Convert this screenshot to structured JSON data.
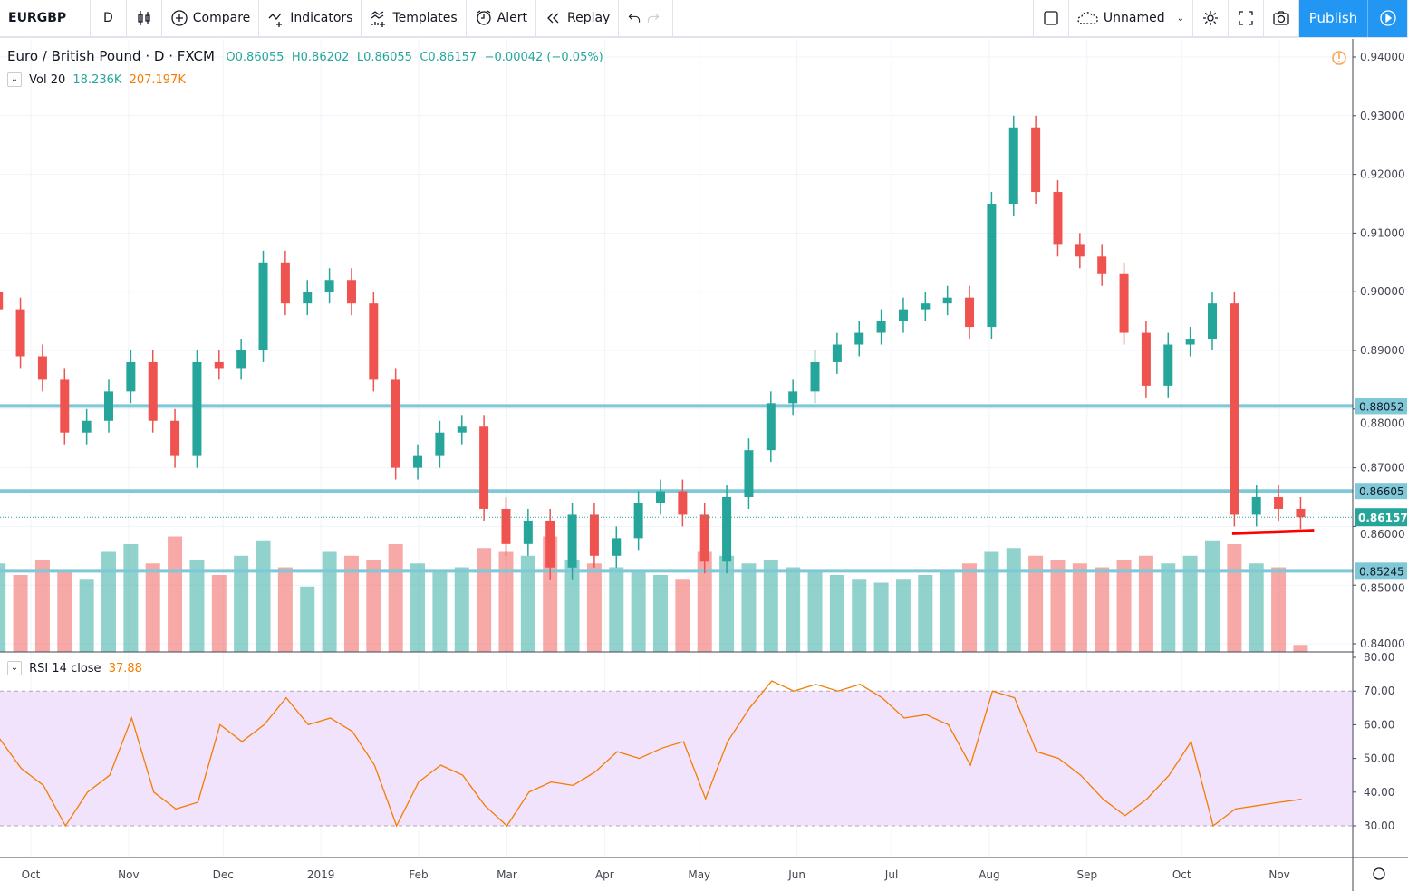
{
  "toolbar": {
    "symbol": "EURGBP",
    "interval": "D",
    "compare": "Compare",
    "indicators": "Indicators",
    "templates": "Templates",
    "alert": "Alert",
    "replay": "Replay",
    "layout_name": "Unnamed",
    "publish": "Publish"
  },
  "legend": {
    "title": "Euro / British Pound · D · FXCM",
    "open": "O0.86055",
    "high": "H0.86202",
    "low": "L0.86055",
    "close": "C0.86157",
    "change": "−0.00042 (−0.05%)",
    "vol_label": "Vol 20",
    "vol_value": "18.236K",
    "vol_ma": "207.197K",
    "rsi_label": "RSI 14 close",
    "rsi_value": "37.88"
  },
  "colors": {
    "up": "#26a69a",
    "down": "#ef5350",
    "hline": "#7ec8d8",
    "rsi_line": "#f57c00",
    "rsi_band": "#f1e3fb",
    "accent": "#2196f3",
    "trendline": "#ff0000"
  },
  "chart_data": {
    "type": "candlestick",
    "price_axis": {
      "ylim": [
        0.84,
        0.94
      ],
      "ticks": [
        "0.94000",
        "0.93000",
        "0.92000",
        "0.91000",
        "0.90000",
        "0.89000",
        "0.88000",
        "0.87000",
        "0.86000",
        "0.85000",
        "0.84000"
      ]
    },
    "rsi_axis": {
      "ylim": [
        25,
        80
      ],
      "ticks": [
        "80.00",
        "70.00",
        "60.00",
        "50.00",
        "40.00",
        "30.00"
      ],
      "band": [
        30,
        70
      ]
    },
    "time_axis": {
      "ticks": [
        {
          "label": "Oct",
          "date": "2018-10-01"
        },
        {
          "label": "Nov",
          "date": "2018-11-01"
        },
        {
          "label": "Dec",
          "date": "2018-12-01"
        },
        {
          "label": "2019",
          "date": "2019-01-01"
        },
        {
          "label": "Feb",
          "date": "2019-02-01"
        },
        {
          "label": "Mar",
          "date": "2019-03-01"
        },
        {
          "label": "Apr",
          "date": "2019-04-01"
        },
        {
          "label": "May",
          "date": "2019-05-01"
        },
        {
          "label": "Jun",
          "date": "2019-06-01"
        },
        {
          "label": "Jul",
          "date": "2019-07-01"
        },
        {
          "label": "Aug",
          "date": "2019-08-01"
        },
        {
          "label": "Sep",
          "date": "2019-09-01"
        },
        {
          "label": "Oct",
          "date": "2019-10-01"
        },
        {
          "label": "Nov",
          "date": "2019-11-01"
        }
      ]
    },
    "horizontal_lines": [
      {
        "price": 0.88052,
        "label": "0.88052"
      },
      {
        "price": 0.86605,
        "label": "0.86605"
      },
      {
        "price": 0.85245,
        "label": "0.85245"
      }
    ],
    "last_price": {
      "price": 0.86157,
      "label": "0.86157"
    },
    "trendline": [
      {
        "date": "2019-10-17",
        "price": 0.8588
      },
      {
        "date": "2019-11-12",
        "price": 0.8593
      }
    ],
    "dates": [
      "2018-09-21",
      "2018-09-28",
      "2018-10-05",
      "2018-10-12",
      "2018-10-19",
      "2018-10-26",
      "2018-11-02",
      "2018-11-09",
      "2018-11-16",
      "2018-11-23",
      "2018-11-30",
      "2018-12-07",
      "2018-12-14",
      "2018-12-21",
      "2018-12-28",
      "2019-01-04",
      "2019-01-11",
      "2019-01-18",
      "2019-01-25",
      "2019-02-01",
      "2019-02-08",
      "2019-02-15",
      "2019-02-22",
      "2019-03-01",
      "2019-03-08",
      "2019-03-15",
      "2019-03-22",
      "2019-03-29",
      "2019-04-05",
      "2019-04-12",
      "2019-04-19",
      "2019-04-26",
      "2019-05-03",
      "2019-05-10",
      "2019-05-17",
      "2019-05-24",
      "2019-05-31",
      "2019-06-07",
      "2019-06-14",
      "2019-06-21",
      "2019-06-28",
      "2019-07-05",
      "2019-07-12",
      "2019-07-19",
      "2019-07-26",
      "2019-08-02",
      "2019-08-09",
      "2019-08-16",
      "2019-08-23",
      "2019-08-30",
      "2019-09-06",
      "2019-09-13",
      "2019-09-20",
      "2019-09-27",
      "2019-10-04",
      "2019-10-11",
      "2019-10-18",
      "2019-10-25",
      "2019-11-01",
      "2019-11-08"
    ],
    "close": [
      0.897,
      0.889,
      0.885,
      0.876,
      0.878,
      0.883,
      0.888,
      0.878,
      0.872,
      0.888,
      0.887,
      0.89,
      0.905,
      0.898,
      0.9,
      0.902,
      0.898,
      0.885,
      0.87,
      0.872,
      0.876,
      0.877,
      0.863,
      0.857,
      0.861,
      0.853,
      0.862,
      0.855,
      0.858,
      0.864,
      0.866,
      0.862,
      0.854,
      0.865,
      0.873,
      0.881,
      0.883,
      0.888,
      0.891,
      0.893,
      0.895,
      0.897,
      0.898,
      0.899,
      0.894,
      0.915,
      0.928,
      0.917,
      0.908,
      0.906,
      0.903,
      0.893,
      0.884,
      0.891,
      0.892,
      0.898,
      0.862,
      0.865,
      0.863,
      0.86157
    ],
    "volume_k": [
      230,
      200,
      240,
      210,
      190,
      260,
      280,
      230,
      300,
      240,
      200,
      250,
      290,
      220,
      170,
      260,
      250,
      240,
      280,
      230,
      210,
      220,
      270,
      260,
      250,
      300,
      240,
      230,
      220,
      210,
      200,
      190,
      260,
      250,
      230,
      240,
      220,
      210,
      200,
      190,
      180,
      190,
      200,
      210,
      230,
      260,
      270,
      250,
      240,
      230,
      220,
      240,
      250,
      230,
      250,
      290,
      280,
      230,
      220,
      18.236
    ],
    "rsi": [
      56,
      47,
      42,
      30,
      40,
      45,
      62,
      40,
      35,
      37,
      60,
      55,
      60,
      68,
      60,
      62,
      58,
      48,
      30,
      43,
      48,
      45,
      36,
      30,
      40,
      43,
      42,
      46,
      52,
      50,
      53,
      55,
      38,
      55,
      65,
      73,
      70,
      72,
      70,
      72,
      68,
      62,
      63,
      60,
      48,
      70,
      68,
      52,
      50,
      45,
      38,
      33,
      38,
      45,
      55,
      30,
      35,
      36,
      37,
      37.88
    ]
  }
}
